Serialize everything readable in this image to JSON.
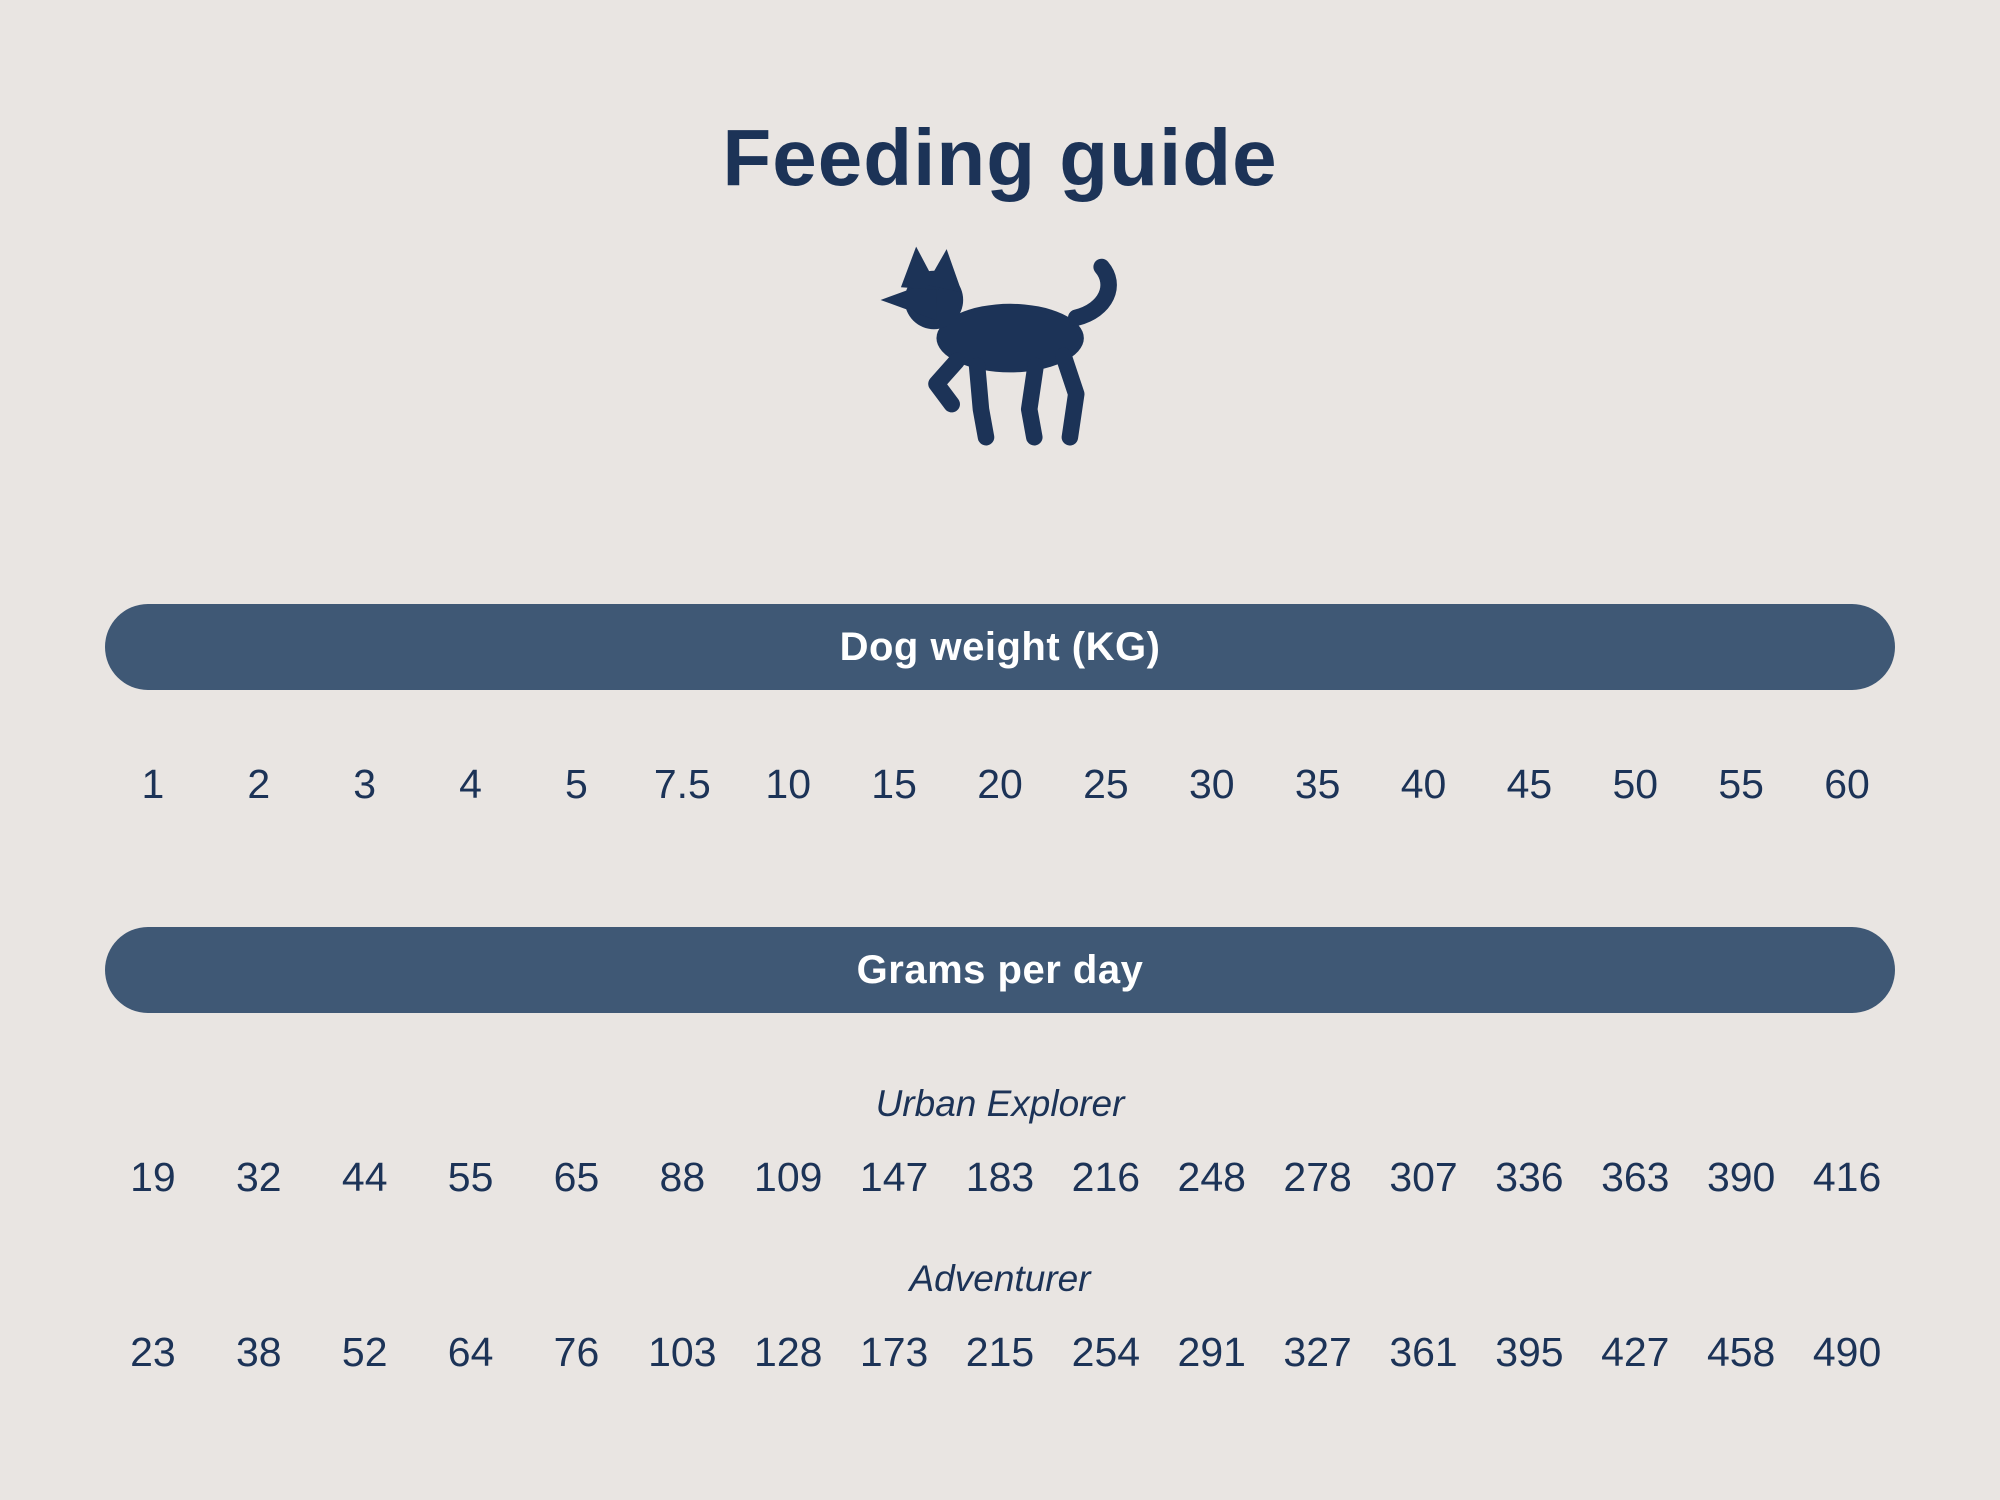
{
  "page": {
    "title": "Feeding guide",
    "background_color": "#e9e5e2",
    "text_color": "#1c3357",
    "pill_color": "#3f5875",
    "icon": "dog-icon"
  },
  "table": {
    "weight_header": "Dog weight (KG)",
    "grams_header": "Grams per day",
    "weights": [
      "1",
      "2",
      "3",
      "4",
      "5",
      "7.5",
      "10",
      "15",
      "20",
      "25",
      "30",
      "35",
      "40",
      "45",
      "50",
      "55",
      "60"
    ],
    "series": [
      {
        "name": "Urban Explorer",
        "values": [
          19,
          32,
          44,
          55,
          65,
          88,
          109,
          147,
          183,
          216,
          248,
          278,
          307,
          336,
          363,
          390,
          416
        ]
      },
      {
        "name": "Adventurer",
        "values": [
          23,
          38,
          52,
          64,
          76,
          103,
          128,
          173,
          215,
          254,
          291,
          327,
          361,
          395,
          427,
          458,
          490
        ]
      }
    ]
  },
  "chart_data": {
    "type": "table",
    "title": "Feeding guide",
    "x_header": "Dog weight (KG)",
    "y_header": "Grams per day",
    "categories": [
      1,
      2,
      3,
      4,
      5,
      7.5,
      10,
      15,
      20,
      25,
      30,
      35,
      40,
      45,
      50,
      55,
      60
    ],
    "series": [
      {
        "name": "Urban Explorer",
        "values": [
          19,
          32,
          44,
          55,
          65,
          88,
          109,
          147,
          183,
          216,
          248,
          278,
          307,
          336,
          363,
          390,
          416
        ]
      },
      {
        "name": "Adventurer",
        "values": [
          23,
          38,
          52,
          64,
          76,
          103,
          128,
          173,
          215,
          254,
          291,
          327,
          361,
          395,
          427,
          458,
          490
        ]
      }
    ],
    "legend_position": "inline-row-labels",
    "grid": false
  }
}
